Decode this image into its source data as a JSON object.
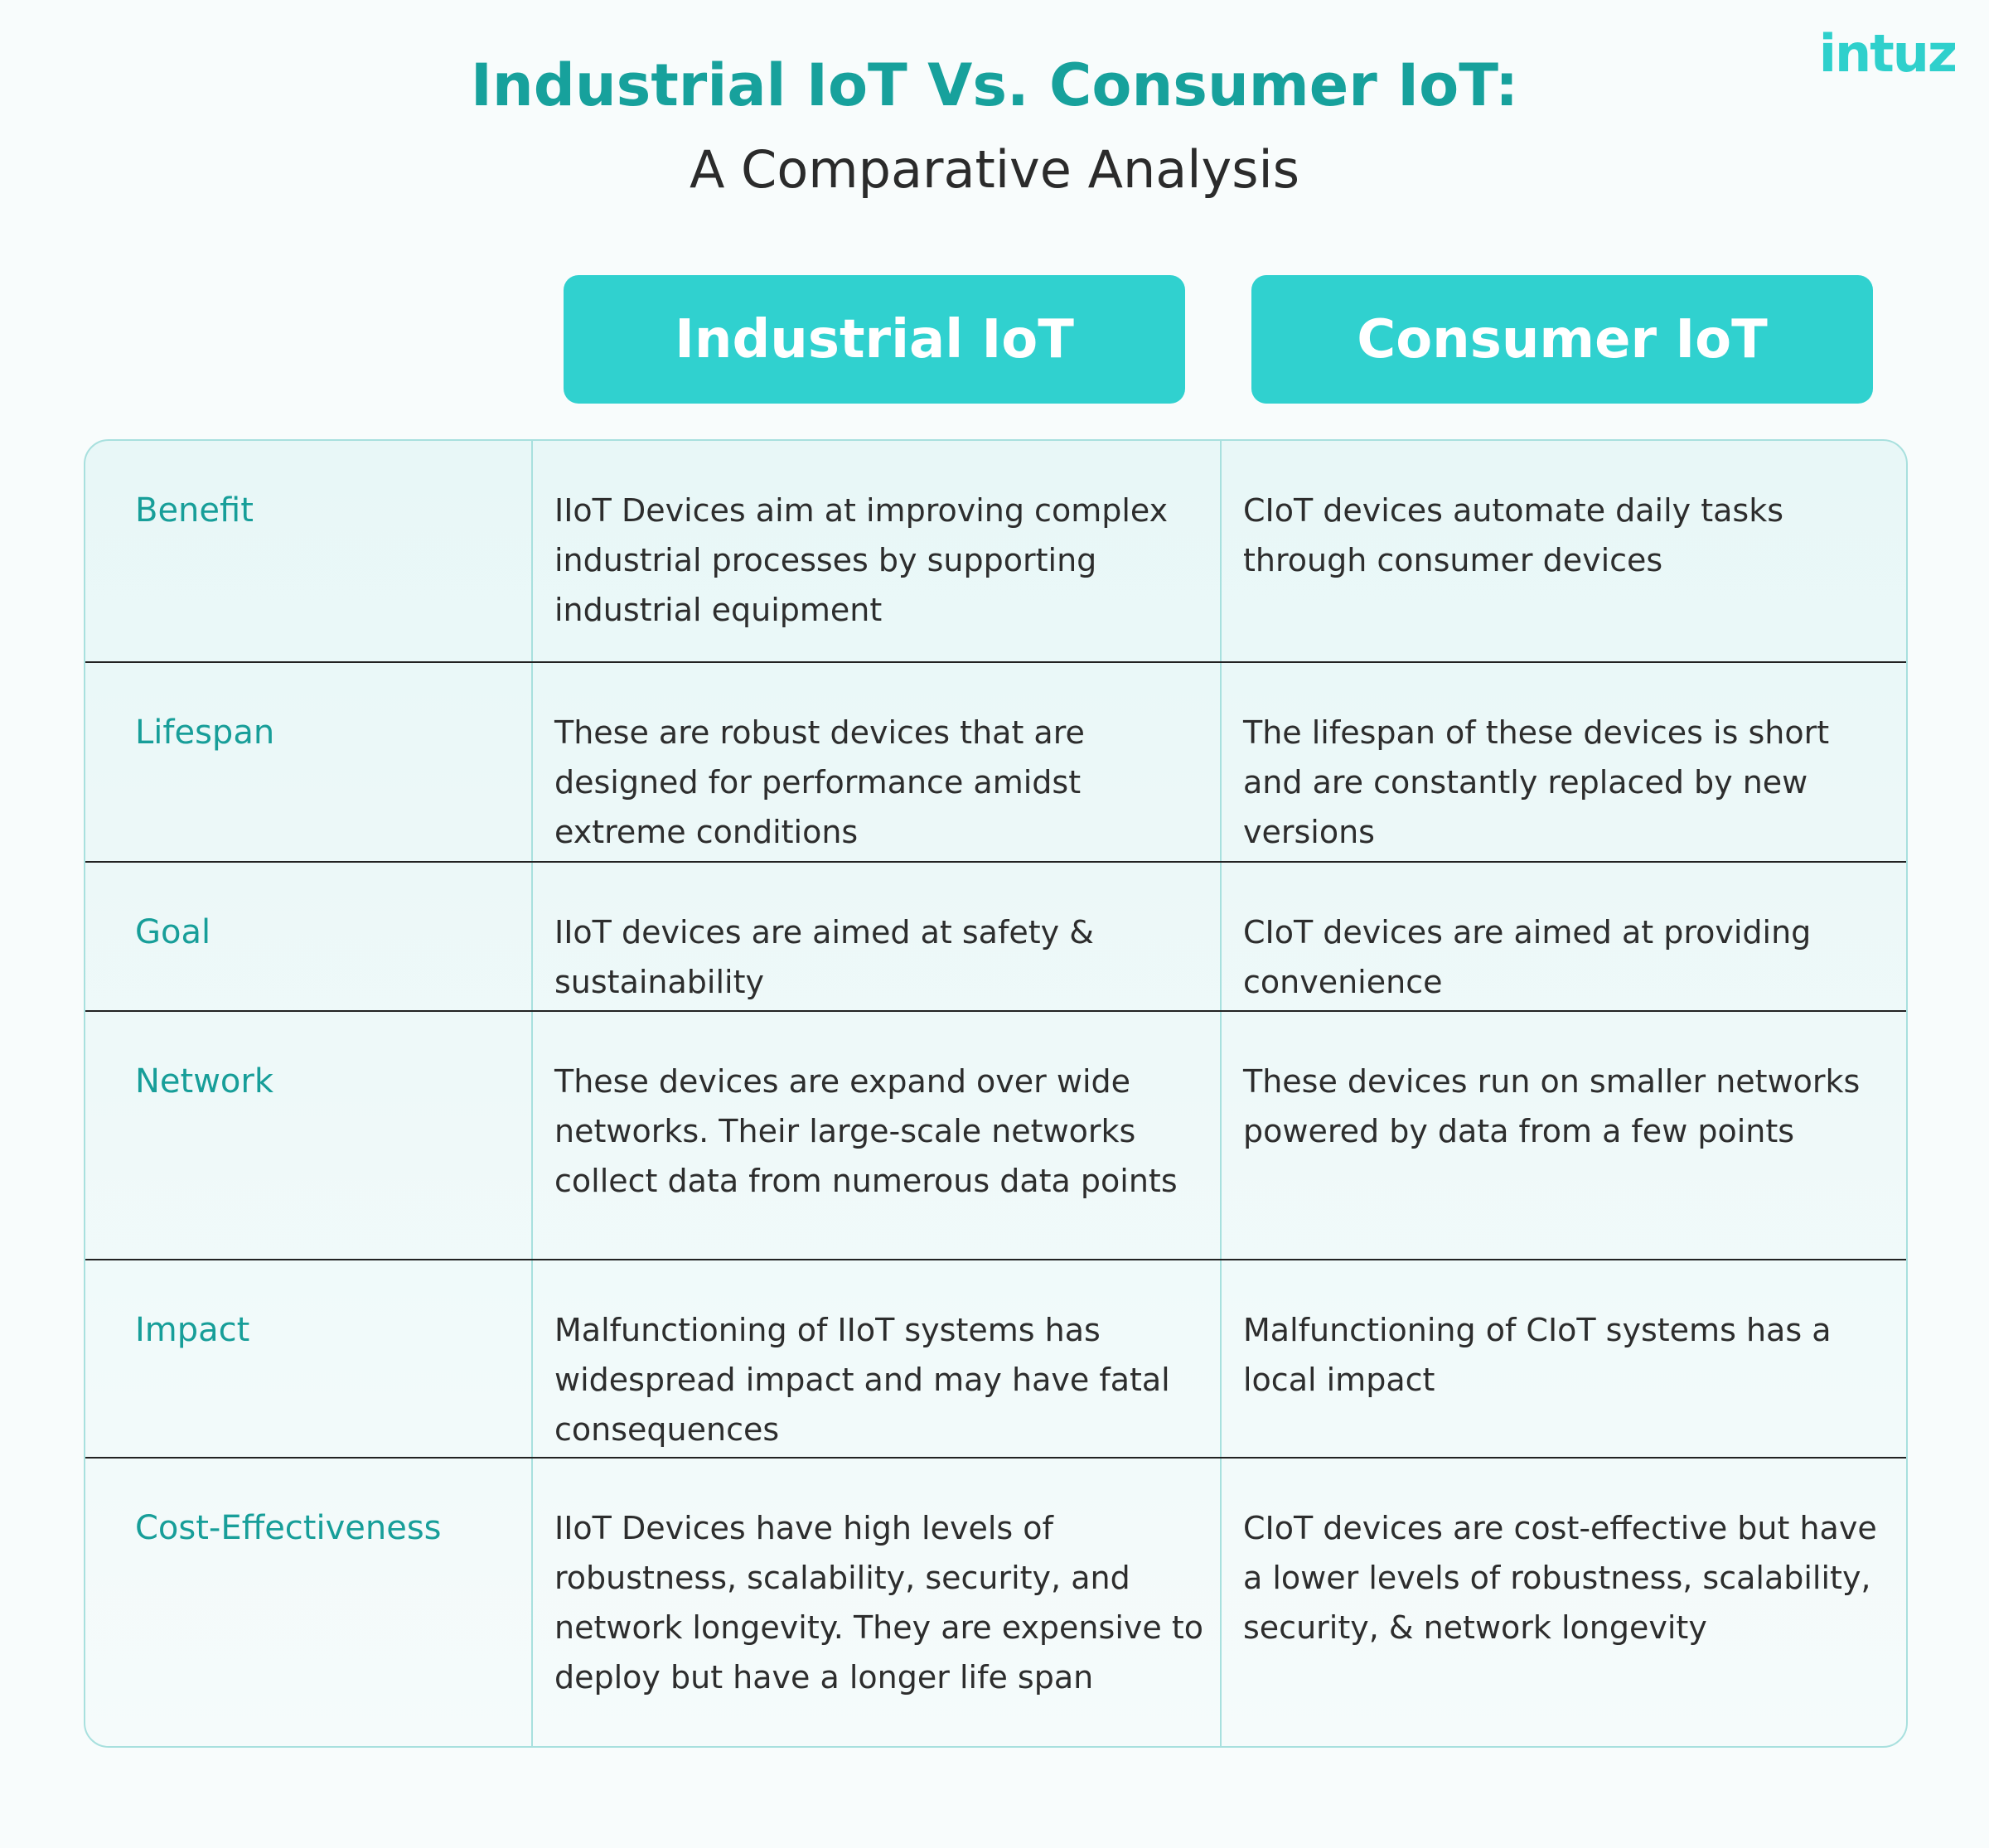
{
  "header": {
    "title": "Industrial IoT Vs. Consumer IoT:",
    "subtitle": "A Comparative Analysis",
    "logo": "intuz"
  },
  "table": {
    "columns": [
      "Industrial IoT",
      "Consumer IoT"
    ],
    "rows": [
      [
        "Benefit",
        "IIoT Devices aim at improving complex industrial processes by supporting industrial equipment",
        "CIoT devices automate daily tasks through consumer devices"
      ],
      [
        "Lifespan",
        "These are robust devices that are designed for performance amidst extreme conditions",
        "The lifespan of these devices is short and are constantly replaced by new versions"
      ],
      [
        "Goal",
        "IIoT devices are aimed at safety & sustainability",
        "CIoT devices are aimed at providing convenience"
      ],
      [
        "Network",
        "These devices are expand over wide networks. Their large-scale networks collect data from numerous data points",
        "These devices run on smaller networks powered by data from a few points"
      ],
      [
        "Impact",
        "Malfunctioning of IIoT systems has widespread impact and may have fatal consequences",
        "Malfunctioning of CIoT systems has a local impact"
      ],
      [
        "Cost-Effectiveness",
        "IIoT Devices have high levels of robustness, scalability, security, and network longevity. They are expensive to deploy but have a longer life span",
        "CIoT devices are cost-effective but have a lower levels of robustness, scalability, security, & network longevity"
      ]
    ]
  }
}
